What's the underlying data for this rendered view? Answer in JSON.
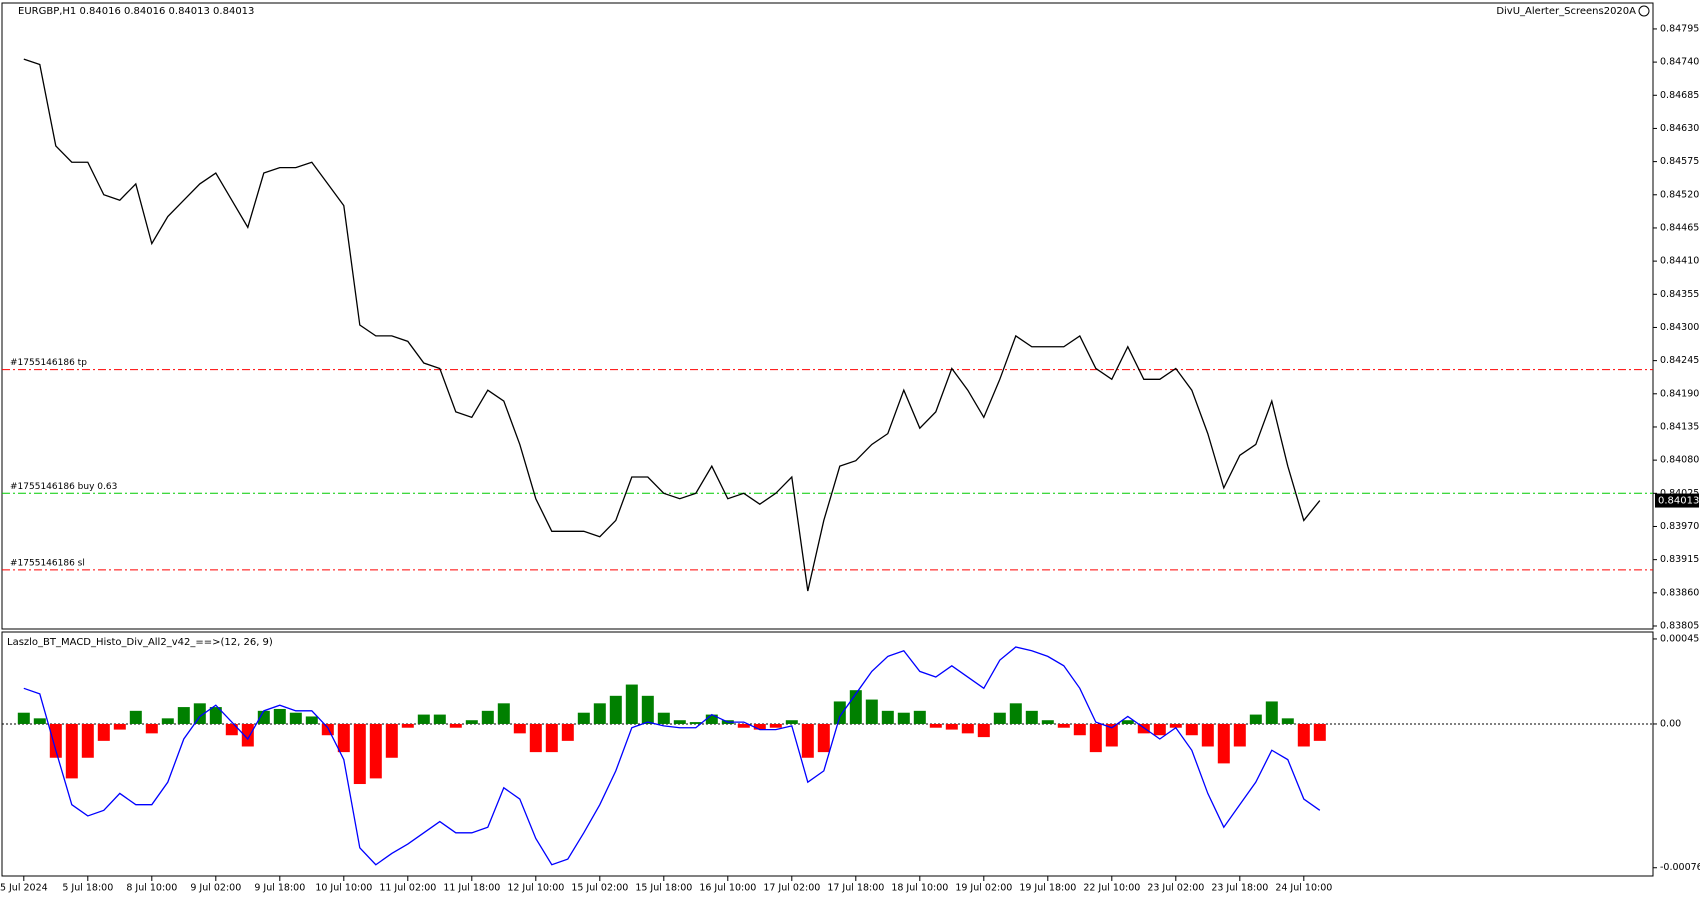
{
  "chart_data": [
    {
      "type": "line",
      "title": "EURGBP,H1  0.84016 0.84016 0.84013 0.84013",
      "subtitle": "DivU_Alerter_Screens2020A",
      "categories": [
        "5 Jul 2024",
        null,
        null,
        null,
        "5 Jul 18:00",
        null,
        null,
        null,
        "8 Jul 10:00",
        null,
        null,
        null,
        "9 Jul 02:00",
        null,
        null,
        null,
        "9 Jul 18:00",
        null,
        null,
        null,
        "10 Jul 10:00",
        null,
        null,
        null,
        "11 Jul 02:00",
        null,
        null,
        null,
        "11 Jul 18:00",
        null,
        null,
        null,
        "12 Jul 10:00",
        null,
        null,
        null,
        "15 Jul 02:00",
        null,
        null,
        null,
        "15 Jul 18:00",
        null,
        null,
        null,
        "16 Jul 10:00",
        null,
        null,
        null,
        "17 Jul 02:00",
        null,
        null,
        null,
        "17 Jul 18:00",
        null,
        null,
        null,
        "18 Jul 10:00",
        null,
        null,
        null,
        "19 Jul 02:00",
        null,
        null,
        null,
        "19 Jul 18:00",
        null,
        null,
        null,
        "22 Jul 10:00",
        null,
        null,
        null,
        "23 Jul 02:00",
        null,
        null,
        null,
        "23 Jul 18:00",
        null,
        null,
        null,
        "24 Jul 10:00",
        null
      ],
      "series": [
        {
          "name": "EURGBP",
          "color": "#000000",
          "values": [
            0.84745,
            0.84736,
            0.84601,
            0.84574,
            0.84574,
            0.8452,
            0.84511,
            0.84538,
            0.84439,
            0.84484,
            0.84511,
            0.84538,
            0.84556,
            0.84511,
            0.84466,
            0.84556,
            0.84565,
            0.84565,
            0.84574,
            0.84538,
            0.84502,
            0.84304,
            0.84286,
            0.84286,
            0.84277,
            0.84241,
            0.84232,
            0.8416,
            0.84151,
            0.84196,
            0.84178,
            0.84106,
            0.84016,
            0.83962,
            0.83962,
            0.83962,
            0.83953,
            0.8398,
            0.84052,
            0.84052,
            0.84025,
            0.84016,
            0.84025,
            0.8407,
            0.84016,
            0.84025,
            0.84007,
            0.84025,
            0.84052,
            0.83863,
            0.8398,
            0.8407,
            0.84079,
            0.84106,
            0.84124,
            0.84196,
            0.84133,
            0.8416,
            0.84232,
            0.84196,
            0.84151,
            0.84214,
            0.84286,
            0.84268,
            0.84268,
            0.84268,
            0.84286,
            0.84232,
            0.84214,
            0.84268,
            0.84214,
            0.84214,
            0.84232,
            0.84196,
            0.84124,
            0.84034,
            0.84088,
            0.84106,
            0.84178,
            0.8407,
            0.8398,
            0.84013
          ]
        }
      ],
      "order_lines": [
        {
          "label": "#1755146186 tp",
          "price": 0.8423,
          "color": "#ff0000"
        },
        {
          "label": "#1755146186 buy 0.63",
          "price": 0.84025,
          "color": "#00cc00"
        },
        {
          "label": "#1755146186 sl",
          "price": 0.83898,
          "color": "#ff0000"
        }
      ],
      "ylim": [
        0.838,
        0.84838
      ],
      "yticks": [
        0.84795,
        {
          "value": 0.8474,
          "label": "0.84740"
        },
        0.84685,
        {
          "value": 0.8463,
          "label": "0.84630"
        },
        0.84575,
        {
          "value": 0.8452,
          "label": "0.84520"
        },
        0.84465,
        {
          "value": 0.8441,
          "label": "0.84410"
        },
        0.84355,
        {
          "value": 0.843,
          "label": "0.84300"
        },
        0.84245,
        {
          "value": 0.8419,
          "label": "0.84190"
        },
        0.84135,
        {
          "value": 0.8408,
          "label": "0.84080"
        },
        0.84025,
        {
          "value": 0.8397,
          "label": "0.83970"
        },
        0.83915,
        {
          "value": 0.8386,
          "label": "0.83860"
        },
        0.83805
      ]
    },
    {
      "type": "bar",
      "title": "Laszlo_BT_MACD_Histo_Div_All2_v42_==>(12, 26, 9)",
      "color_up": "#008000",
      "color_down": "#ff0000",
      "values": [
        6e-05,
        3e-05,
        -0.00018,
        -0.00029,
        -0.00018,
        -9e-05,
        -3e-05,
        7e-05,
        -5e-05,
        3e-05,
        9e-05,
        0.00011,
        9e-05,
        -6e-05,
        -0.00012,
        7e-05,
        8e-05,
        6e-05,
        4e-05,
        -6e-05,
        -0.00015,
        -0.00032,
        -0.00029,
        -0.00018,
        -2e-05,
        5e-05,
        5e-05,
        -2e-05,
        2e-05,
        7e-05,
        0.00011,
        -5e-05,
        -0.00015,
        -0.00015,
        -9e-05,
        6e-05,
        0.00011,
        0.00015,
        0.00021,
        0.00015,
        6e-05,
        2e-05,
        1e-05,
        5e-05,
        2e-05,
        -2e-05,
        -3e-05,
        -2e-05,
        2e-05,
        -0.00018,
        -0.00015,
        0.00012,
        0.00018,
        0.00013,
        7e-05,
        6e-05,
        7e-05,
        -2e-05,
        -3e-05,
        -5e-05,
        -7e-05,
        6e-05,
        0.00011,
        7e-05,
        2e-05,
        -2e-05,
        -6e-05,
        -0.00015,
        -0.00012,
        2e-05,
        -5e-05,
        -6e-05,
        -2e-05,
        -6e-05,
        -0.00012,
        -0.00021,
        -0.00012,
        5e-05,
        0.00012,
        3e-05,
        -0.00012,
        -9e-05
      ],
      "line_color": "#0000ff",
      "line_values": [
        0.00019,
        0.00016,
        -0.00014,
        -0.00043,
        -0.00049,
        -0.00046,
        -0.00037,
        -0.00043,
        -0.00043,
        -0.00031,
        -8e-05,
        4e-05,
        0.0001,
        1e-05,
        -8e-05,
        7e-05,
        0.0001,
        7e-05,
        7e-05,
        -2e-05,
        -0.00019,
        -0.00066,
        -0.00075,
        -0.00069,
        -0.00064,
        -0.00058,
        -0.00052,
        -0.00058,
        -0.00058,
        -0.00055,
        -0.00034,
        -0.0004,
        -0.00061,
        -0.00075,
        -0.00072,
        -0.00058,
        -0.00043,
        -0.00025,
        -2e-05,
        1e-05,
        -1e-05,
        -2e-05,
        -2e-05,
        5e-05,
        1e-05,
        1e-05,
        -3e-05,
        -3e-05,
        -1e-05,
        -0.00031,
        -0.00025,
        4e-05,
        0.00016,
        0.00028,
        0.00036,
        0.00039,
        0.00028,
        0.00025,
        0.00031,
        0.00025,
        0.00019,
        0.00034,
        0.00041,
        0.00039,
        0.00036,
        0.00031,
        0.00019,
        1e-05,
        -2e-05,
        4e-05,
        -2e-05,
        -8e-05,
        -2e-05,
        -0.00014,
        -0.00037,
        -0.00055,
        -0.00043,
        -0.00031,
        -0.00014,
        -0.00019,
        -0.0004,
        -0.00046
      ],
      "ylim": [
        -0.00081,
        0.00049
      ],
      "yticks": [
        0.000453,
        {
          "value": 0,
          "label": "0.00"
        },
        -0.000766
      ]
    }
  ]
}
